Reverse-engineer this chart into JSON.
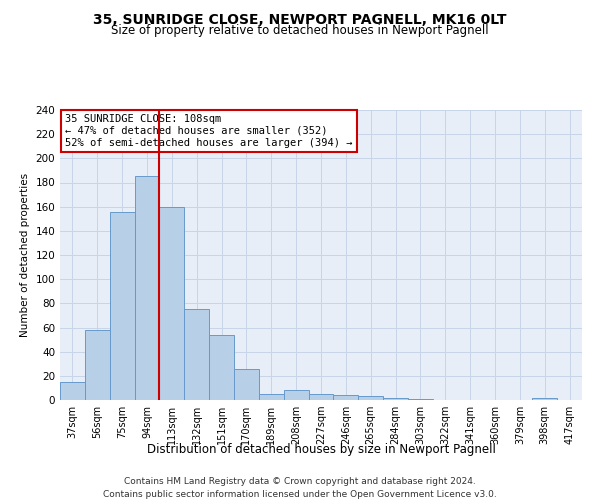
{
  "title": "35, SUNRIDGE CLOSE, NEWPORT PAGNELL, MK16 0LT",
  "subtitle": "Size of property relative to detached houses in Newport Pagnell",
  "xlabel": "Distribution of detached houses by size in Newport Pagnell",
  "ylabel": "Number of detached properties",
  "bar_labels": [
    "37sqm",
    "56sqm",
    "75sqm",
    "94sqm",
    "113sqm",
    "132sqm",
    "151sqm",
    "170sqm",
    "189sqm",
    "208sqm",
    "227sqm",
    "246sqm",
    "265sqm",
    "284sqm",
    "303sqm",
    "322sqm",
    "341sqm",
    "360sqm",
    "379sqm",
    "398sqm",
    "417sqm"
  ],
  "bar_values": [
    15,
    58,
    156,
    185,
    160,
    75,
    54,
    26,
    5,
    8,
    5,
    4,
    3,
    2,
    1,
    0,
    0,
    0,
    0,
    2,
    0
  ],
  "bar_color": "#b8cfe8",
  "bar_edge_color": "#6699cc",
  "vline_x": 3.5,
  "property_line_label": "35 SUNRIDGE CLOSE: 108sqm",
  "annotation_line1": "← 47% of detached houses are smaller (352)",
  "annotation_line2": "52% of semi-detached houses are larger (394) →",
  "annotation_box_color": "#ffffff",
  "annotation_box_edge_color": "#cc0000",
  "vline_color": "#cc0000",
  "ylim": [
    0,
    240
  ],
  "yticks": [
    0,
    20,
    40,
    60,
    80,
    100,
    120,
    140,
    160,
    180,
    200,
    220,
    240
  ],
  "grid_color": "#c8d4e8",
  "background_color": "#e8eef8",
  "footer_line1": "Contains HM Land Registry data © Crown copyright and database right 2024.",
  "footer_line2": "Contains public sector information licensed under the Open Government Licence v3.0."
}
